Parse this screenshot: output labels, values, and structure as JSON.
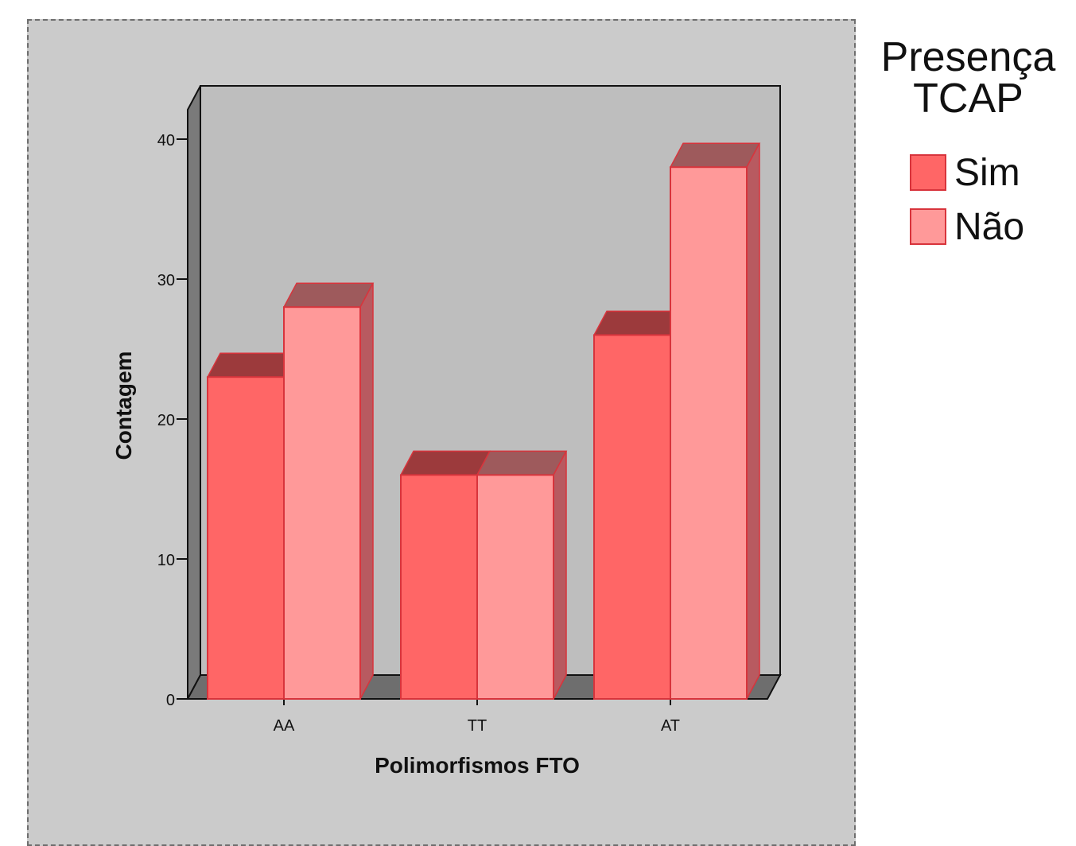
{
  "chart_data": {
    "type": "bar",
    "style": "3d-clustered",
    "categories": [
      "AA",
      "TT",
      "AT"
    ],
    "series": [
      {
        "name": "Sim",
        "values": [
          23,
          16,
          26
        ],
        "color": "#ff6666",
        "top_color": "#9c3a3c",
        "side_color": "#b84046"
      },
      {
        "name": "Não",
        "values": [
          28,
          16,
          38
        ],
        "color": "#ff9999",
        "top_color": "#9e5a5c",
        "side_color": "#b85a60"
      }
    ],
    "xlabel": "Polimorfismos FTO",
    "ylabel": "Contagem",
    "ylim": [
      0,
      40
    ],
    "yticks": [
      0,
      10,
      20,
      30,
      40
    ],
    "legend": {
      "title_line1": "Presença",
      "title_line2": "TCAP",
      "placement": "right"
    },
    "grid": false,
    "colors": {
      "frame_bg": "#cbcbcb",
      "plot_back_wall": "#bebebe",
      "floor": "#6e6e6e",
      "side_wall": "#7a7a7a",
      "bar_edge": "#d8343c"
    }
  }
}
